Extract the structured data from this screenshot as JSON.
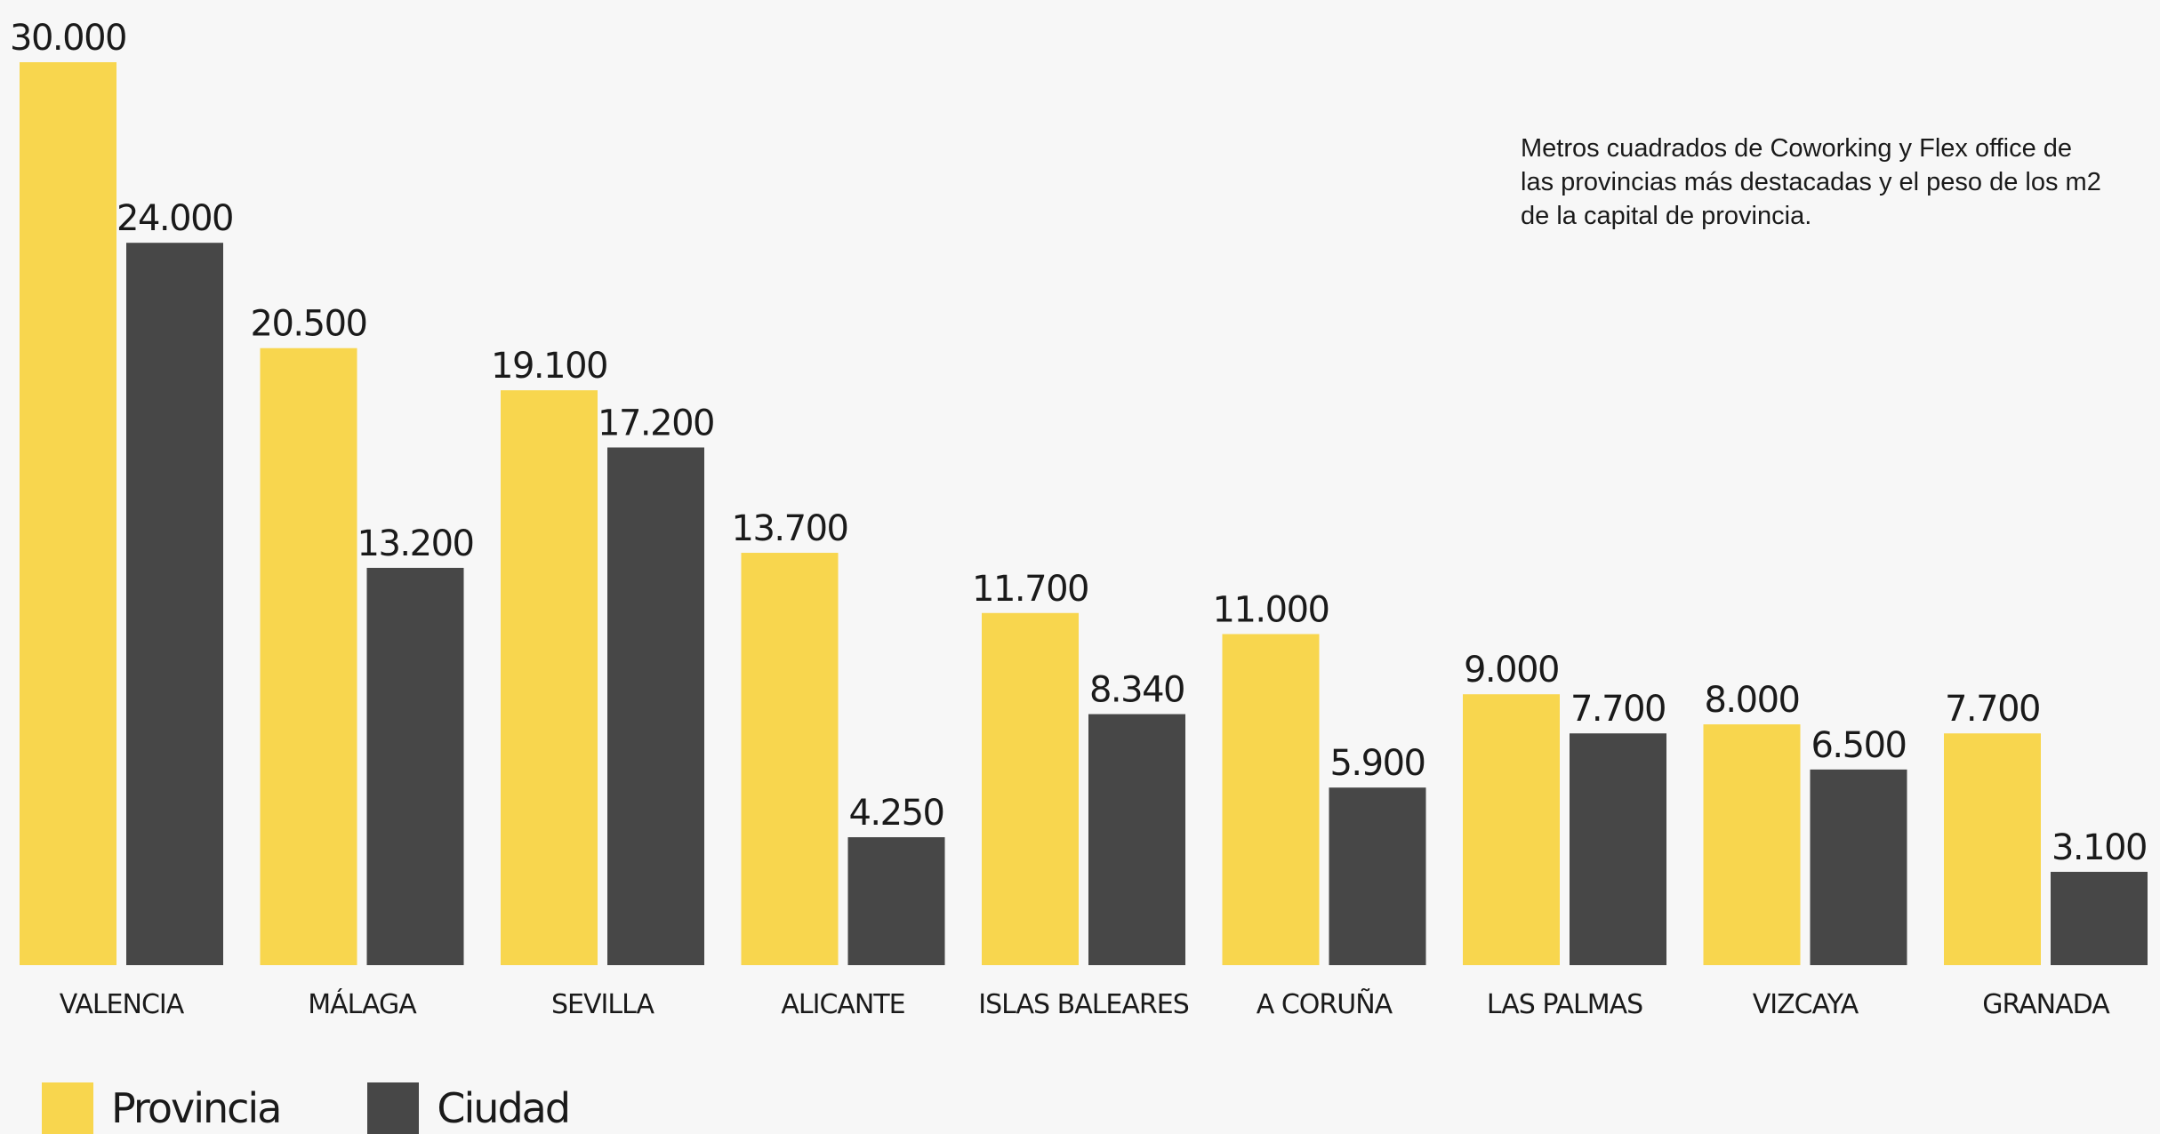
{
  "chart_data": {
    "type": "bar",
    "title": "",
    "subtitle": "Metros cuadrados de Coworking y Flex office de las provincias más destacadas y el peso de los m2 de la capital de provincia.",
    "xlabel": "",
    "ylabel": "",
    "ylim": [
      0,
      30000
    ],
    "grid": false,
    "legend_placement": "bottom-left",
    "categories": [
      "VALENCIA",
      "MÁLAGA",
      "SEVILLA",
      "ALICANTE",
      "ISLAS BALEARES",
      "A CORUÑA",
      "LAS PALMAS",
      "VIZCAYA",
      "GRANADA"
    ],
    "series": [
      {
        "name": "Provincia",
        "color": "#f8d64e",
        "values": [
          30000,
          20500,
          19100,
          13700,
          11700,
          11000,
          9000,
          8000,
          7700
        ],
        "labels": [
          "30.000",
          "20.500",
          "19.100",
          "13.700",
          "11.700",
          "11.000",
          "9.000",
          "8.000",
          "7.700"
        ]
      },
      {
        "name": "Ciudad",
        "color": "#474747",
        "values": [
          24000,
          13200,
          17200,
          4250,
          8340,
          5900,
          7700,
          6500,
          3100
        ],
        "labels": [
          "24.000",
          "13.200",
          "17.200",
          "4.250",
          "8.340",
          "5.900",
          "7.700",
          "6.500",
          "3.100"
        ]
      }
    ]
  }
}
